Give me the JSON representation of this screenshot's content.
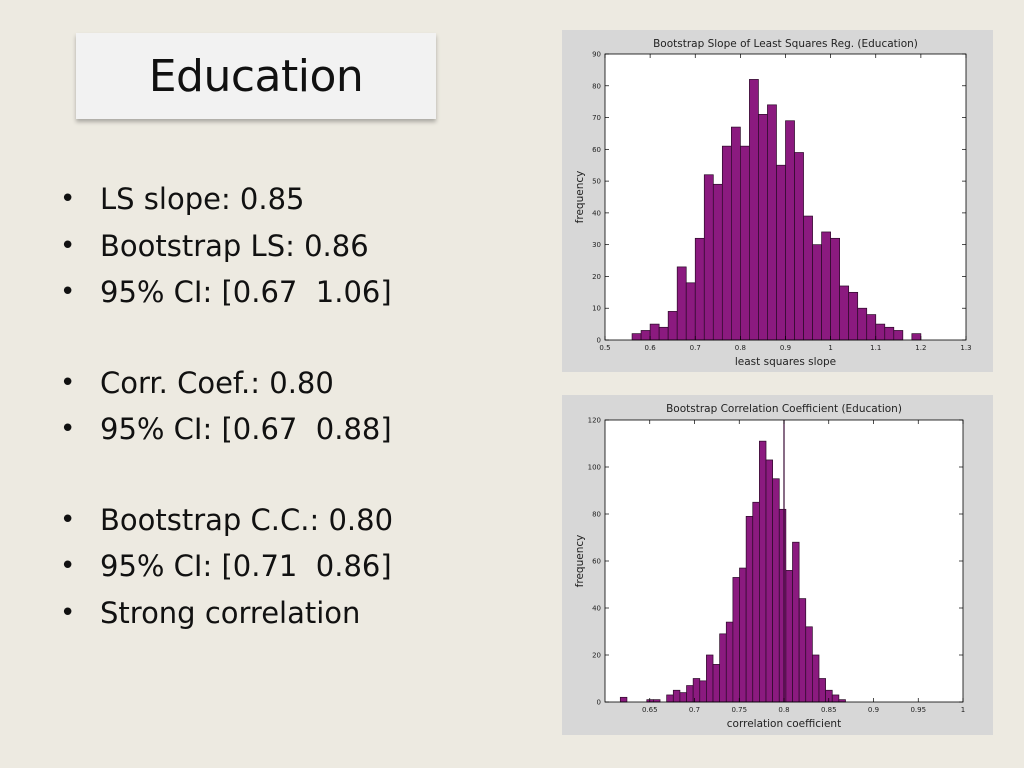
{
  "slide": {
    "title": "Education",
    "bullets": [
      {
        "text": "LS slope: 0.85",
        "gap_before": false
      },
      {
        "text": "Bootstrap LS: 0.86",
        "gap_before": false
      },
      {
        "text": "95% CI: [0.67  1.06]",
        "gap_before": false
      },
      {
        "text": "Corr. Coef.: 0.80",
        "gap_before": true
      },
      {
        "text": "95% CI: [0.67  0.88]",
        "gap_before": false
      },
      {
        "text": "Bootstrap C.C.: 0.80",
        "gap_before": true
      },
      {
        "text": "95% CI: [0.71  0.86]",
        "gap_before": false
      },
      {
        "text": "Strong correlation",
        "gap_before": false
      }
    ]
  },
  "colors": {
    "bar_fill": "#8b1a7f",
    "bar_stroke": "#2a0a27",
    "panel_bg": "#d7d7d7",
    "slide_bg": "#edeae1"
  },
  "chart_data": [
    {
      "type": "bar",
      "title": "Bootstrap Slope of Least Squares Reg. (Education)",
      "xlabel": "least squares slope",
      "ylabel": "frequency",
      "xlim": [
        0.5,
        1.3
      ],
      "ylim": [
        0,
        90
      ],
      "xticks": [
        0.5,
        0.6,
        0.7,
        0.8,
        0.9,
        1,
        1.1,
        1.2,
        1.3
      ],
      "xtick_labels": [
        "0.5",
        "0.6",
        "0.7",
        "0.8",
        "0.9",
        "1",
        "1.1",
        "1.2",
        "1.3"
      ],
      "yticks": [
        0,
        10,
        20,
        30,
        40,
        50,
        60,
        70,
        80,
        90
      ],
      "ytick_labels": [
        "0",
        "10",
        "20",
        "30",
        "40",
        "50",
        "60",
        "70",
        "80",
        "90"
      ],
      "bin_width": 0.02,
      "bins": [
        {
          "x": 0.57,
          "y": 2
        },
        {
          "x": 0.59,
          "y": 3
        },
        {
          "x": 0.61,
          "y": 5
        },
        {
          "x": 0.63,
          "y": 4
        },
        {
          "x": 0.65,
          "y": 9
        },
        {
          "x": 0.67,
          "y": 23
        },
        {
          "x": 0.69,
          "y": 18
        },
        {
          "x": 0.71,
          "y": 32
        },
        {
          "x": 0.73,
          "y": 52
        },
        {
          "x": 0.75,
          "y": 49
        },
        {
          "x": 0.77,
          "y": 61
        },
        {
          "x": 0.79,
          "y": 67
        },
        {
          "x": 0.81,
          "y": 61
        },
        {
          "x": 0.83,
          "y": 82
        },
        {
          "x": 0.85,
          "y": 71
        },
        {
          "x": 0.87,
          "y": 74
        },
        {
          "x": 0.89,
          "y": 55
        },
        {
          "x": 0.91,
          "y": 69
        },
        {
          "x": 0.93,
          "y": 59
        },
        {
          "x": 0.95,
          "y": 39
        },
        {
          "x": 0.97,
          "y": 30
        },
        {
          "x": 0.99,
          "y": 34
        },
        {
          "x": 1.01,
          "y": 32
        },
        {
          "x": 1.03,
          "y": 17
        },
        {
          "x": 1.05,
          "y": 15
        },
        {
          "x": 1.07,
          "y": 10
        },
        {
          "x": 1.09,
          "y": 8
        },
        {
          "x": 1.11,
          "y": 5
        },
        {
          "x": 1.13,
          "y": 4
        },
        {
          "x": 1.15,
          "y": 3
        },
        {
          "x": 1.19,
          "y": 2
        }
      ],
      "grid": false
    },
    {
      "type": "bar",
      "title": "Bootstrap Correlation Coefficient (Education)",
      "xlabel": "correlation coefficient",
      "ylabel": "frequency",
      "xlim": [
        0.6,
        1.0
      ],
      "ylim": [
        0,
        120
      ],
      "xticks": [
        0.65,
        0.7,
        0.75,
        0.8,
        0.85,
        0.9,
        0.95,
        1
      ],
      "xtick_labels": [
        "0.65",
        "0.7",
        "0.75",
        "0.8",
        "0.85",
        "0.9",
        "0.95",
        "1"
      ],
      "yticks": [
        0,
        20,
        40,
        60,
        80,
        100,
        120
      ],
      "ytick_labels": [
        "0",
        "20",
        "40",
        "60",
        "80",
        "100",
        "120"
      ],
      "bin_width": 0.0074,
      "bins": [
        {
          "x": 0.6208,
          "y": 2
        },
        {
          "x": 0.6504,
          "y": 1
        },
        {
          "x": 0.6578,
          "y": 1
        },
        {
          "x": 0.6726,
          "y": 3
        },
        {
          "x": 0.68,
          "y": 5
        },
        {
          "x": 0.6874,
          "y": 4
        },
        {
          "x": 0.6948,
          "y": 7
        },
        {
          "x": 0.7022,
          "y": 10
        },
        {
          "x": 0.7096,
          "y": 9
        },
        {
          "x": 0.717,
          "y": 20
        },
        {
          "x": 0.7244,
          "y": 16
        },
        {
          "x": 0.7318,
          "y": 29
        },
        {
          "x": 0.7392,
          "y": 34
        },
        {
          "x": 0.7466,
          "y": 53
        },
        {
          "x": 0.754,
          "y": 57
        },
        {
          "x": 0.7614,
          "y": 79
        },
        {
          "x": 0.7688,
          "y": 85
        },
        {
          "x": 0.7762,
          "y": 111
        },
        {
          "x": 0.7836,
          "y": 103
        },
        {
          "x": 0.791,
          "y": 95
        },
        {
          "x": 0.7984,
          "y": 82
        },
        {
          "x": 0.8058,
          "y": 56
        },
        {
          "x": 0.8132,
          "y": 68
        },
        {
          "x": 0.8206,
          "y": 44
        },
        {
          "x": 0.828,
          "y": 32
        },
        {
          "x": 0.8354,
          "y": 20
        },
        {
          "x": 0.8428,
          "y": 10
        },
        {
          "x": 0.8502,
          "y": 5
        },
        {
          "x": 0.8576,
          "y": 3
        },
        {
          "x": 0.865,
          "y": 1
        }
      ],
      "mean_line_x": 0.8,
      "grid": false
    }
  ]
}
